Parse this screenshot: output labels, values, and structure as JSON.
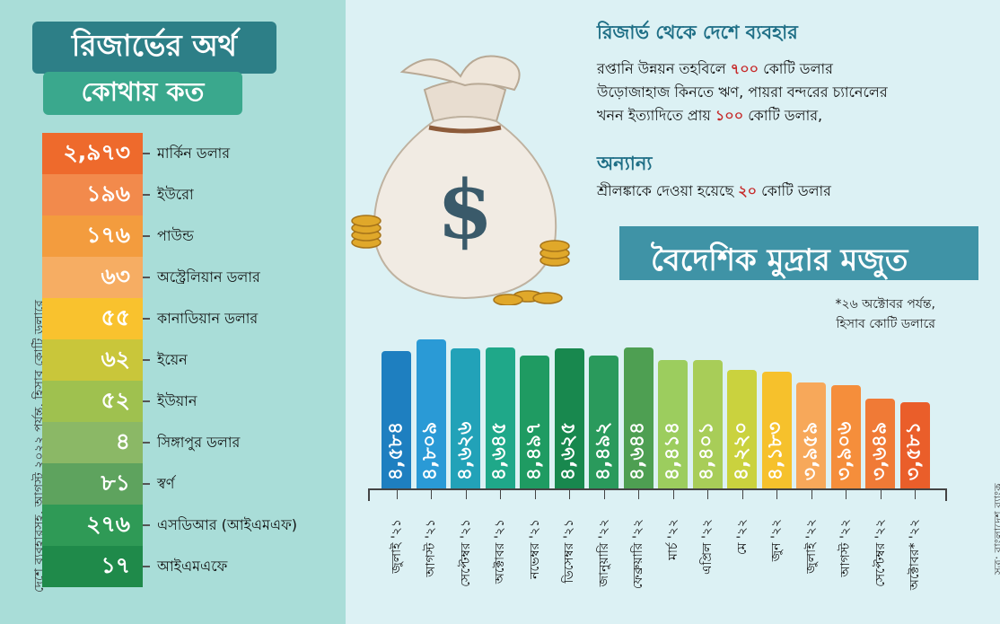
{
  "left": {
    "title_line1": "রিজার্ভের অর্থ",
    "title_line2": "কোথায় কত",
    "vertical_note": "দেশে ব্যবহারসহ, আগস্ট ২০২২ পর্যন্ত, হিসাব কোটি ডলারে"
  },
  "currencies": [
    {
      "value": "২,৯৭৩",
      "name": "মার্কিন ডলার",
      "color": "#ee6a2c"
    },
    {
      "value": "১৯৬",
      "name": "ইউরো",
      "color": "#f28a4c"
    },
    {
      "value": "১৭৬",
      "name": "পাউন্ড",
      "color": "#f39c3e"
    },
    {
      "value": "৬৩",
      "name": "অস্ট্রেলিয়ান ডলার",
      "color": "#f6ad63"
    },
    {
      "value": "৫৫",
      "name": "কানাডিয়ান ডলার",
      "color": "#f9c22e"
    },
    {
      "value": "৬২",
      "name": "ইয়েন",
      "color": "#c9c63a"
    },
    {
      "value": "৫২",
      "name": "ইউয়ান",
      "color": "#9fc14f"
    },
    {
      "value": "৪",
      "name": "সিঙ্গাপুর ডলার",
      "color": "#8bb866"
    },
    {
      "value": "৮১",
      "name": "স্বর্ণ",
      "color": "#5ea35e"
    },
    {
      "value": "২৭৬",
      "name": "এসডিআর (আইএমএফ)",
      "color": "#2f9a56"
    },
    {
      "value": "১৭",
      "name": "আইএমএফে",
      "color": "#1f8a4a"
    }
  ],
  "usage": {
    "title": "রিজার্ভ থেকে দেশে ব্যবহার",
    "line1_pre": "রপ্তানি উন্নয়ন তহবিলে ",
    "line1_num": "৭০০",
    "line1_post": " কোটি ডলার",
    "line2": "উড়োজাহাজ কিনতে ঋণ, পায়রা বন্দরের চ্যানেলের",
    "line3_pre": "খনন ইত্যাদিতে প্রায় ",
    "line3_num": "১০০",
    "line3_post": " কোটি ডলার,"
  },
  "other": {
    "title": "অন্যান্য",
    "line_pre": "শ্রীলঙ্কাকে দেওয়া হয়েছে ",
    "line_num": "২০",
    "line_post": " কোটি ডলার"
  },
  "chart_title": "বৈদেশিক মুদ্রার মজুত",
  "chart_note_line1": "*২৬ অক্টোবর পর্যন্ত,",
  "chart_note_line2": "হিসাব কোটি ডলারে",
  "source": "সূত্র: বাংলাদেশ ব্যাংক",
  "chart_data": {
    "type": "bar",
    "categories": [
      "জুলাই '২১",
      "আগস্ট '২১",
      "সেপ্টেম্বর '২১",
      "অক্টোবর '২১",
      "নভেম্বর '২১",
      "ডিসেম্বর '২১",
      "জানুয়ারি '২২",
      "ফেব্রুয়ারি '২২",
      "মার্চ '২২",
      "এপ্রিল '২২",
      "মে '২২",
      "জুন '২২",
      "জুলাই '২২",
      "আগস্ট '২২",
      "সেপ্টেম্বর '২২",
      "অক্টোবর* '২২"
    ],
    "values": [
      4584,
      4809,
      4626,
      4645,
      4497,
      4625,
      4492,
      4644,
      4414,
      4401,
      4220,
      4183,
      3959,
      3906,
      3649,
      3581
    ],
    "value_labels": [
      "৪,৫৮৪",
      "৪,৮০৯",
      "৪,৬২৬",
      "৪,৬৪৫",
      "৪,৪৯৭",
      "৪,৬২৫",
      "৪,৪৯২",
      "৪,৬৪৪",
      "৪,৪১৪",
      "৪,৪০১",
      "৪,২২০",
      "৪,১৮৩",
      "৩,৯৫৯",
      "৩,৯০৬",
      "৩,৬৪৯",
      "৩,৫৮১"
    ],
    "colors": [
      "#1e7fc0",
      "#2a9ad6",
      "#22a2b8",
      "#1fa889",
      "#1f9b62",
      "#18884e",
      "#2a9a5c",
      "#4e9f52",
      "#9ccd5e",
      "#a8cd58",
      "#cad23e",
      "#f6c12c",
      "#f7a85a",
      "#f58e3b",
      "#f07a36",
      "#ea5e2a"
    ],
    "ylabel": "হিসাব কোটি ডলারে"
  }
}
